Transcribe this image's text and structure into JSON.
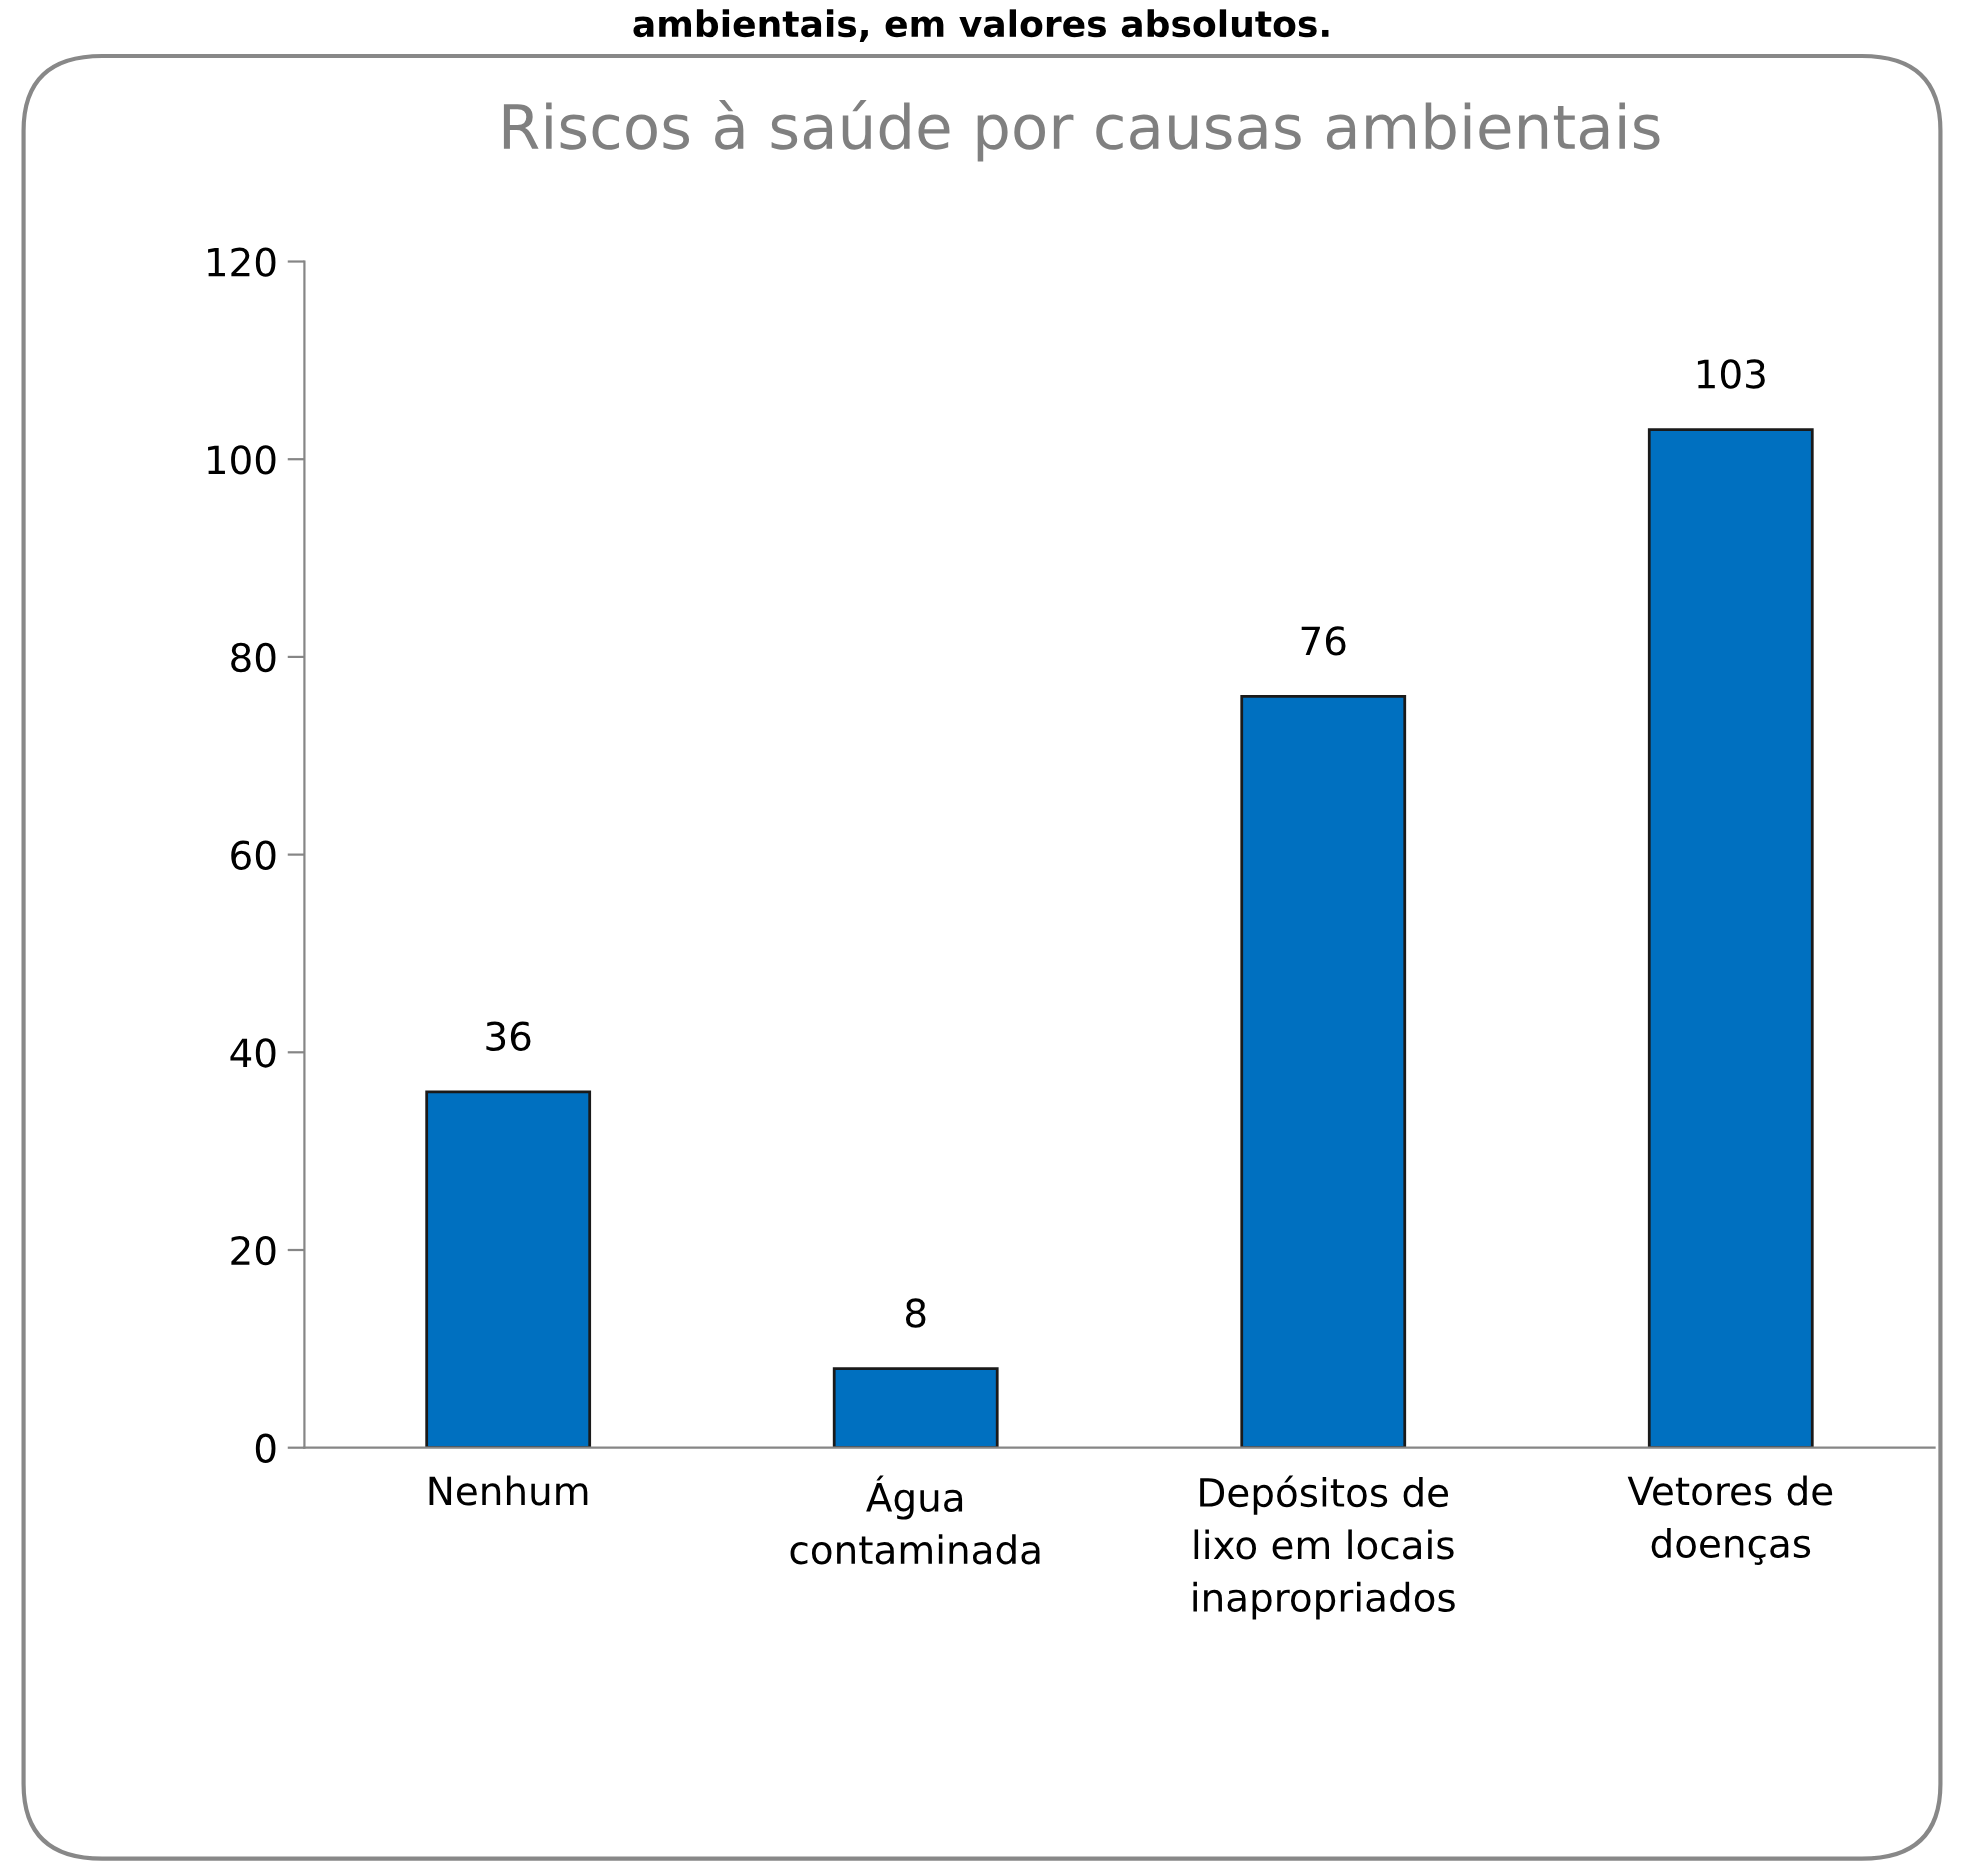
{
  "chart_data": {
    "type": "bar",
    "title": "Riscos à saúde por causas ambientais",
    "annotations": [
      "ambientais, em valores absolutos."
    ],
    "categories": [
      "Nenhum",
      "Água\ncontaminada",
      "Depósitos de\nlixo em locais\ninapropriados",
      "Vetores de\ndoenças"
    ],
    "values": [
      36,
      8,
      76,
      103
    ],
    "color": "#0070c0",
    "ylim": [
      0,
      120
    ],
    "yticks": [
      0,
      20,
      40,
      60,
      80,
      100,
      120
    ],
    "grid": false,
    "data_labels": true
  }
}
